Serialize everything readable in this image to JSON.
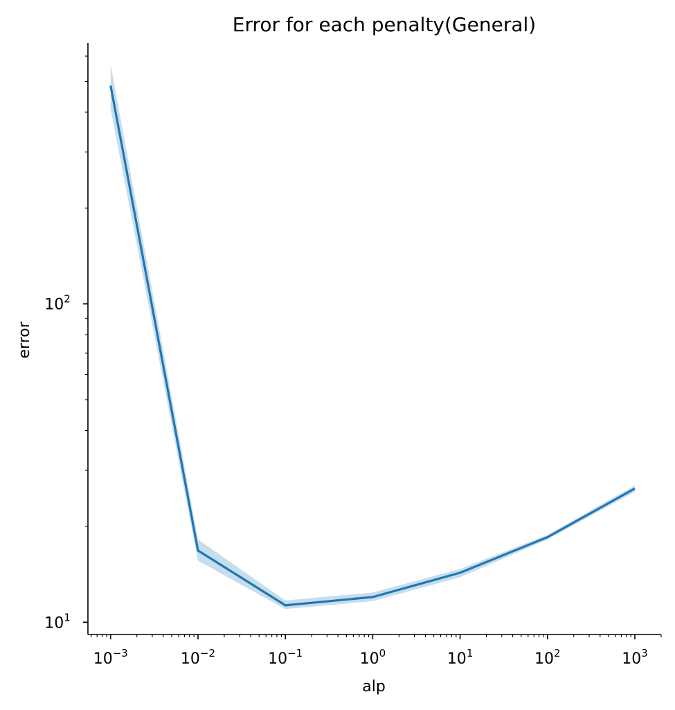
{
  "chart_data": {
    "type": "line",
    "title": "Error for each penalty(General)",
    "xlabel": "alp",
    "ylabel": "error",
    "xscale": "log",
    "yscale": "log",
    "xlim": [
      0.00055,
      2000
    ],
    "ylim": [
      9.15,
      660
    ],
    "grid": false,
    "legend": "none",
    "x_ticks": [
      {
        "value": 0.001,
        "base": "10",
        "exp": "−3"
      },
      {
        "value": 0.01,
        "base": "10",
        "exp": "−2"
      },
      {
        "value": 0.1,
        "base": "10",
        "exp": "−1"
      },
      {
        "value": 1,
        "base": "10",
        "exp": "0"
      },
      {
        "value": 10,
        "base": "10",
        "exp": "1"
      },
      {
        "value": 100,
        "base": "10",
        "exp": "2"
      },
      {
        "value": 1000,
        "base": "10",
        "exp": "3"
      }
    ],
    "y_ticks": [
      {
        "value": 10,
        "base": "10",
        "exp": "1"
      },
      {
        "value": 100,
        "base": "10",
        "exp": "2"
      }
    ],
    "colors": {
      "line": "#1f77b4",
      "band": "#1f77b4"
    },
    "series": [
      {
        "x": [
          0.001,
          0.01,
          0.1,
          1,
          10,
          100,
          1000
        ],
        "y": [
          485,
          16.8,
          11.3,
          12.0,
          14.3,
          18.5,
          26.3
        ],
        "lower": [
          410,
          15.6,
          11.0,
          11.65,
          13.85,
          18.2,
          25.7
        ],
        "upper": [
          565,
          18.2,
          11.7,
          12.4,
          14.7,
          18.8,
          26.9
        ]
      }
    ]
  }
}
